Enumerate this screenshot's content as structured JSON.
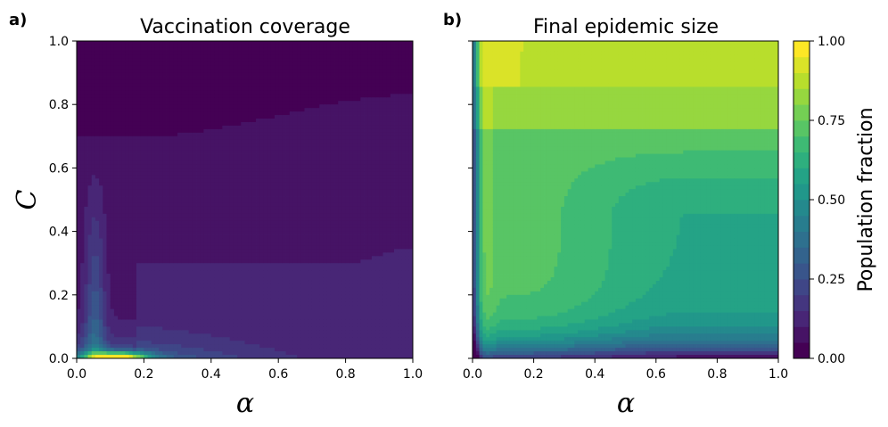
{
  "figure": {
    "panels": [
      {
        "letter": "a)",
        "title": "Vaccination coverage",
        "xlabel": "α",
        "ylabel": "C"
      },
      {
        "letter": "b)",
        "title": "Final epidemic size",
        "xlabel": "α",
        "ylabel": ""
      }
    ],
    "colorbar": {
      "label": "Population fraction"
    }
  },
  "chart_data": [
    {
      "type": "heatmap",
      "title": "Vaccination coverage",
      "xlabel": "α",
      "ylabel": "C",
      "xlim": [
        0,
        1
      ],
      "ylim": [
        0,
        1
      ],
      "xticks": [
        "0.0",
        "0.2",
        "0.4",
        "0.6",
        "0.8",
        "1.0"
      ],
      "yticks": [
        "0.0",
        "0.2",
        "0.4",
        "0.6",
        "0.8",
        "1.0"
      ],
      "colormap": "viridis",
      "clim": [
        0,
        1
      ],
      "levels": 20,
      "description_regions": [
        {
          "region": "C > 0.7 (all α)",
          "value": 0.03
        },
        {
          "region": "0.3 < C < 0.7, α > 0.2",
          "value": 0.08
        },
        {
          "region": "C < 0.3, α > 0.2",
          "value": 0.13
        },
        {
          "region": "α ≈ 0.05–0.2, C ≈ 0",
          "value": 0.95
        }
      ]
    },
    {
      "type": "heatmap",
      "title": "Final epidemic size",
      "xlabel": "α",
      "ylabel": "",
      "xlim": [
        0,
        1
      ],
      "ylim": [
        0,
        1
      ],
      "xticks": [
        "0.0",
        "0.2",
        "0.4",
        "0.6",
        "0.8",
        "1.0"
      ],
      "colormap": "viridis",
      "clim": [
        0,
        1
      ],
      "levels": 20,
      "description_regions": [
        {
          "region": "C > 0.85",
          "value": 0.9
        },
        {
          "region": "0.7 < C < 0.85",
          "value": 0.82
        },
        {
          "region": "mid C, low α",
          "value": 0.72
        },
        {
          "region": "mid C, high α",
          "value": 0.63
        },
        {
          "region": "C ≈ 0",
          "value": 0.1
        }
      ]
    }
  ],
  "colorbar_data": {
    "range": [
      0,
      1
    ],
    "ticks": [
      "0.00",
      "0.25",
      "0.50",
      "0.75",
      "1.00"
    ],
    "levels": 20,
    "label": "Population fraction"
  }
}
